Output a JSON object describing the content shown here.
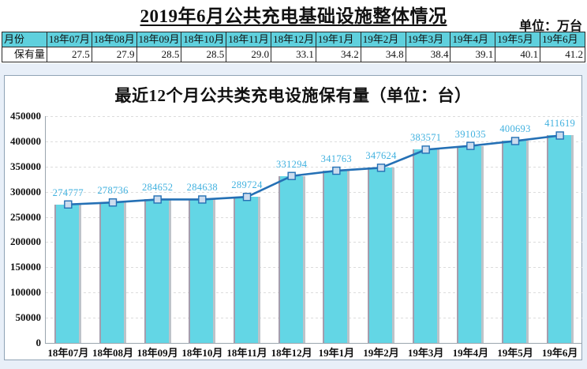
{
  "page": {
    "title": "2019年6月公共充电基础设施整体情况",
    "unit_note": "单位：万台"
  },
  "table": {
    "row_header_label": "月份",
    "value_row_label": "保有量",
    "columns": [
      "18年07月",
      "18年08月",
      "18年09月",
      "18年10月",
      "18年11月",
      "18年12月",
      "19年1月",
      "19年2月",
      "19年3月",
      "19年4月",
      "19年5月",
      "19年6月"
    ],
    "values": [
      "27.5",
      "27.9",
      "28.5",
      "28.5",
      "29.0",
      "33.1",
      "34.2",
      "34.8",
      "38.4",
      "39.1",
      "40.1",
      "41.2"
    ]
  },
  "chart_data": {
    "type": "bar+line",
    "title": "最近12个月公共类充电设施保有量（单位：台）",
    "categories": [
      "18年07月",
      "18年08月",
      "18年09月",
      "18年10月",
      "18年11月",
      "18年12月",
      "19年1月",
      "19年2月",
      "19年3月",
      "19年4月",
      "19年5月",
      "19年6月"
    ],
    "values": [
      274777,
      278736,
      284652,
      284638,
      289724,
      331294,
      341763,
      347624,
      383571,
      391035,
      400693,
      411619
    ],
    "ylim": [
      0,
      450000
    ],
    "ytick_interval": 50000,
    "grid": true,
    "legend": "none",
    "colors": {
      "bar_fill": "#63D6E5",
      "bar_edge_left": "#A59DAD",
      "bar_edge_right": "#BDC3C9",
      "line": "#2470B5",
      "marker_fill": "#CCDCEE",
      "point_label": "#41B1DF",
      "grid": "#DCDCDC",
      "axis": "#9AA5AE",
      "table_header_bg": "#5FD0DD",
      "panel_border": "#8FA3B5",
      "band_bg": "#E8EFF8"
    }
  }
}
